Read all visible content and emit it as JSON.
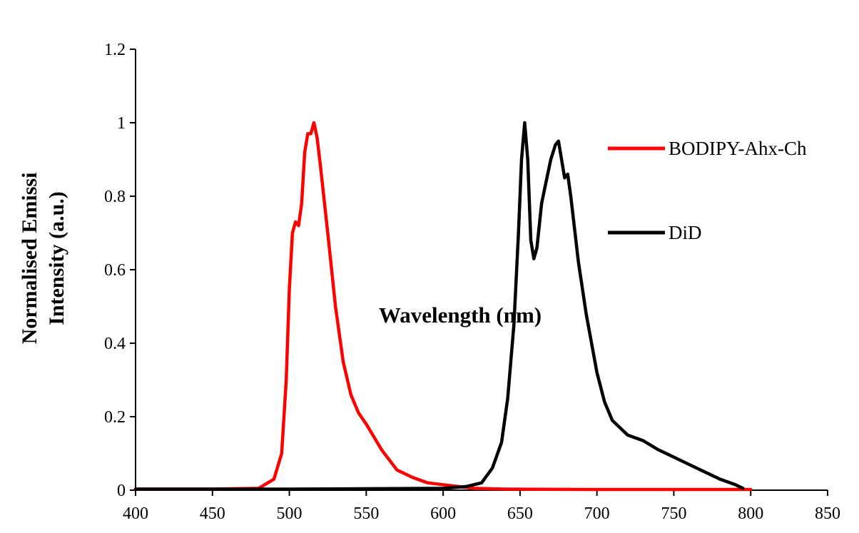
{
  "chart_data": {
    "type": "line",
    "title": "",
    "xlabel": "Wavelength (nm)",
    "ylabel_lines": [
      "Normalised Emissi",
      "Intensity (a.u.)"
    ],
    "xlim": [
      400,
      850
    ],
    "ylim": [
      0,
      1.2
    ],
    "xticks": [
      400,
      450,
      500,
      550,
      600,
      650,
      700,
      750,
      800,
      850
    ],
    "yticks": [
      0,
      0.2,
      0.4,
      0.6,
      0.8,
      1,
      1.2
    ],
    "xtick_labels": [
      "400",
      "450",
      "500",
      "550",
      "600",
      "650",
      "700",
      "750",
      "800",
      "850"
    ],
    "ytick_labels": [
      "0",
      "0.2",
      "0.4",
      "0.6",
      "0.8",
      "1",
      "1.2"
    ],
    "grid": false,
    "legend_position": "right",
    "series": [
      {
        "name": "BODIPY-Ahx-Ch",
        "color": "#ff0000",
        "x": [
          400,
          450,
          480,
          490,
          495,
          498,
          500,
          502,
          504,
          506,
          508,
          510,
          512,
          514,
          516,
          518,
          520,
          525,
          530,
          535,
          540,
          545,
          550,
          560,
          570,
          580,
          590,
          600,
          610,
          620,
          640,
          700,
          800
        ],
        "y": [
          0.003,
          0.003,
          0.005,
          0.03,
          0.1,
          0.3,
          0.55,
          0.7,
          0.73,
          0.72,
          0.78,
          0.92,
          0.97,
          0.97,
          1.0,
          0.96,
          0.89,
          0.7,
          0.5,
          0.35,
          0.26,
          0.21,
          0.18,
          0.11,
          0.055,
          0.035,
          0.02,
          0.015,
          0.01,
          0.005,
          0.003,
          0.002,
          0.002
        ]
      },
      {
        "name": "DiD",
        "color": "#000000",
        "x": [
          400,
          500,
          600,
          615,
          625,
          632,
          638,
          642,
          646,
          649,
          651,
          653,
          655,
          657,
          659,
          661,
          664,
          667,
          670,
          673,
          675,
          677,
          679,
          681,
          683,
          688,
          693,
          700,
          705,
          710,
          720,
          730,
          740,
          750,
          760,
          770,
          780,
          790,
          795
        ],
        "y": [
          0.003,
          0.003,
          0.005,
          0.01,
          0.02,
          0.06,
          0.13,
          0.25,
          0.45,
          0.7,
          0.9,
          1.0,
          0.9,
          0.68,
          0.63,
          0.66,
          0.78,
          0.84,
          0.9,
          0.94,
          0.95,
          0.9,
          0.85,
          0.86,
          0.8,
          0.62,
          0.48,
          0.32,
          0.24,
          0.19,
          0.15,
          0.135,
          0.11,
          0.09,
          0.07,
          0.05,
          0.03,
          0.015,
          0.005
        ]
      }
    ]
  }
}
